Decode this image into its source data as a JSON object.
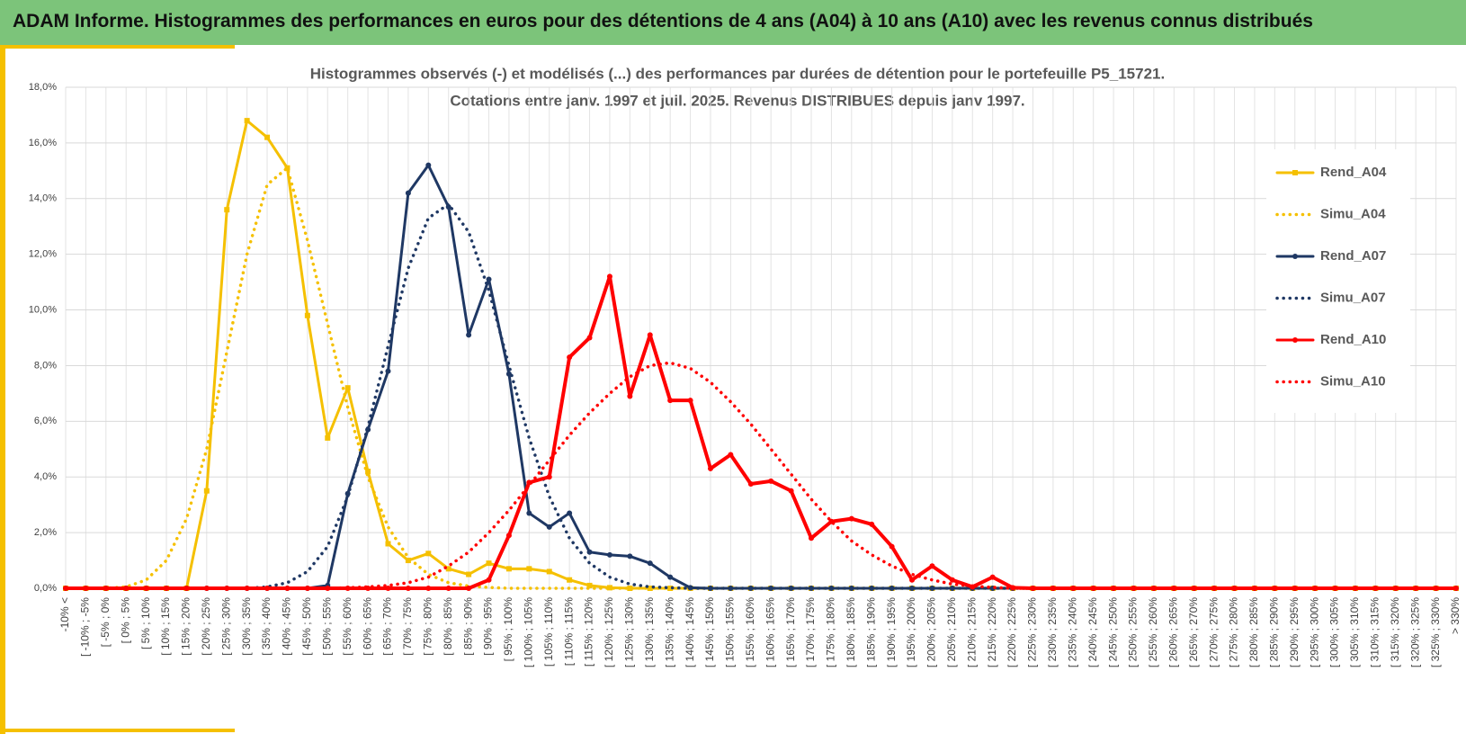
{
  "header": {
    "title": "ADAM Informe. Histogrammes des performances en euros pour des détentions de 4 ans (A04) à 10 ans (A10) avec les revenus connus distribués"
  },
  "chart_data": {
    "type": "line",
    "title": "Histogrammes observés (-) et modélisés (...) des performances par durées de détention pour le portefeuille P5_15721.",
    "subtitle": "Cotations entre janv. 1997 et juil. 2025. Revenus DISTRIBUES depuis janv 1997.",
    "categories": [
      "-10% <",
      "[ -10% ; -5%",
      "[ -5% ; 0%",
      "[ 0% ; 5%",
      "[ 5% ; 10%",
      "[ 10% ; 15%",
      "[ 15% ; 20%",
      "[ 20% ; 25%",
      "[ 25% ; 30%",
      "[ 30% ; 35%",
      "[ 35% ; 40%",
      "[ 40% ; 45%",
      "[ 45% ; 50%",
      "[ 50% ; 55%",
      "[ 55% ; 60%",
      "[ 60% ; 65%",
      "[ 65% ; 70%",
      "[ 70% ; 75%",
      "[ 75% ; 80%",
      "[ 80% ; 85%",
      "[ 85% ; 90%",
      "[ 90% ; 95%",
      "[ 95% ; 100%",
      "[ 100% ; 105%",
      "[ 105% ; 110%",
      "[ 110% ; 115%",
      "[ 115% ; 120%",
      "[ 120% ; 125%",
      "[ 125% ; 130%",
      "[ 130% ; 135%",
      "[ 135% ; 140%",
      "[ 140% ; 145%",
      "[ 145% ; 150%",
      "[ 150% ; 155%",
      "[ 155% ; 160%",
      "[ 160% ; 165%",
      "[ 165% ; 170%",
      "[ 170% ; 175%",
      "[ 175% ; 180%",
      "[ 180% ; 185%",
      "[ 185% ; 190%",
      "[ 190% ; 195%",
      "[ 195% ; 200%",
      "[ 200% ; 205%",
      "[ 205% ; 210%",
      "[ 210% ; 215%",
      "[ 215% ; 220%",
      "[ 220% ; 225%",
      "[ 225% ; 230%",
      "[ 230% ; 235%",
      "[ 235% ; 240%",
      "[ 240% ; 245%",
      "[ 245% ; 250%",
      "[ 250% ; 255%",
      "[ 255% ; 260%",
      "[ 260% ; 265%",
      "[ 265% ; 270%",
      "[ 270% ; 275%",
      "[ 275% ; 280%",
      "[ 280% ; 285%",
      "[ 285% ; 290%",
      "[ 290% ; 295%",
      "[ 295% ; 300%",
      "[ 300% ; 305%",
      "[ 305% ; 310%",
      "[ 310% ; 315%",
      "[ 315% ; 320%",
      "[ 320% ; 325%",
      "[ 325% ; 330%",
      "> 330%"
    ],
    "series": [
      {
        "name": "Rend_A04",
        "color": "#f5c000",
        "line_style": "solid",
        "marker": "square",
        "values": [
          0,
          0,
          0,
          0,
          0,
          0,
          0,
          3.5,
          13.6,
          16.8,
          16.2,
          15.1,
          9.8,
          5.4,
          7.2,
          4.2,
          1.6,
          1.0,
          1.25,
          0.7,
          0.5,
          0.9,
          0.7,
          0.7,
          0.6,
          0.3,
          0.1,
          0.02,
          0,
          0,
          0,
          0,
          0,
          0,
          0,
          0,
          0,
          0,
          0,
          0,
          0,
          0,
          0,
          0,
          0,
          0,
          0,
          0,
          0,
          0,
          0,
          0,
          0,
          0,
          0,
          0,
          0,
          0,
          0,
          0,
          0,
          0,
          0,
          0,
          0,
          0,
          0,
          0,
          0,
          0
        ]
      },
      {
        "name": "Simu_A04",
        "color": "#f5c000",
        "line_style": "dotted",
        "marker": null,
        "values": [
          0,
          0,
          0,
          0.05,
          0.3,
          1.0,
          2.5,
          5.0,
          8.5,
          12.0,
          14.5,
          15.1,
          12.5,
          9.5,
          6.5,
          4.0,
          2.2,
          1.1,
          0.5,
          0.2,
          0.08,
          0.03,
          0,
          0,
          0,
          0,
          0,
          0,
          0,
          0,
          0,
          0,
          0,
          0,
          0,
          0,
          0,
          0,
          0,
          0,
          0,
          0,
          0,
          0,
          0,
          0,
          0,
          0,
          0,
          0,
          0,
          0,
          0,
          0,
          0,
          0,
          0,
          0,
          0,
          0,
          0,
          0,
          0,
          0,
          0,
          0,
          0,
          0,
          0,
          0
        ]
      },
      {
        "name": "Rend_A07",
        "color": "#1f3864",
        "line_style": "solid",
        "marker": "circle",
        "values": [
          0,
          0,
          0,
          0,
          0,
          0,
          0,
          0,
          0,
          0,
          0,
          0,
          0,
          0.1,
          3.4,
          5.7,
          7.8,
          14.2,
          15.2,
          13.7,
          9.1,
          11.1,
          7.7,
          2.7,
          2.2,
          2.7,
          1.3,
          1.2,
          1.15,
          0.9,
          0.4,
          0.02,
          0,
          0,
          0,
          0,
          0,
          0,
          0,
          0,
          0,
          0,
          0,
          0,
          0,
          0,
          0,
          0,
          0,
          0,
          0,
          0,
          0,
          0,
          0,
          0,
          0,
          0,
          0,
          0,
          0,
          0,
          0,
          0,
          0,
          0,
          0,
          0,
          0,
          0
        ]
      },
      {
        "name": "Simu_A07",
        "color": "#1f3864",
        "line_style": "dotted",
        "marker": null,
        "values": [
          0,
          0,
          0,
          0,
          0,
          0,
          0,
          0,
          0,
          0,
          0.05,
          0.2,
          0.6,
          1.5,
          3.3,
          5.8,
          8.7,
          11.5,
          13.3,
          13.8,
          12.8,
          10.7,
          8.0,
          5.4,
          3.3,
          1.8,
          0.9,
          0.4,
          0.15,
          0.05,
          0.02,
          0,
          0,
          0,
          0,
          0,
          0,
          0,
          0,
          0,
          0,
          0,
          0,
          0,
          0,
          0,
          0,
          0,
          0,
          0,
          0,
          0,
          0,
          0,
          0,
          0,
          0,
          0,
          0,
          0,
          0,
          0,
          0,
          0,
          0,
          0,
          0,
          0,
          0,
          0
        ]
      },
      {
        "name": "Rend_A10",
        "color": "#ff0000",
        "line_style": "solid",
        "marker": "circle",
        "values": [
          0,
          0,
          0,
          0,
          0,
          0,
          0,
          0,
          0,
          0,
          0,
          0,
          0,
          0,
          0,
          0,
          0,
          0,
          0,
          0,
          0,
          0.3,
          1.9,
          3.8,
          4.0,
          8.3,
          9.0,
          11.2,
          6.9,
          9.1,
          6.75,
          6.75,
          4.3,
          4.8,
          3.75,
          3.85,
          3.5,
          1.8,
          2.4,
          2.5,
          2.3,
          1.5,
          0.3,
          0.8,
          0.3,
          0.05,
          0.4,
          0.02,
          0,
          0,
          0,
          0,
          0,
          0,
          0,
          0,
          0,
          0,
          0,
          0,
          0,
          0,
          0,
          0,
          0,
          0,
          0,
          0,
          0,
          0
        ]
      },
      {
        "name": "Simu_A10",
        "color": "#ff0000",
        "line_style": "dotted",
        "marker": null,
        "values": [
          0,
          0,
          0,
          0,
          0,
          0,
          0,
          0,
          0,
          0,
          0,
          0,
          0,
          0,
          0.02,
          0.05,
          0.1,
          0.2,
          0.4,
          0.8,
          1.3,
          2.0,
          2.8,
          3.7,
          4.6,
          5.5,
          6.3,
          7.0,
          7.6,
          8.0,
          8.1,
          7.9,
          7.4,
          6.7,
          5.9,
          5.0,
          4.1,
          3.2,
          2.4,
          1.7,
          1.2,
          0.8,
          0.5,
          0.3,
          0.15,
          0.08,
          0.03,
          0,
          0,
          0,
          0,
          0,
          0,
          0,
          0,
          0,
          0,
          0,
          0,
          0,
          0,
          0,
          0,
          0,
          0,
          0,
          0,
          0,
          0,
          0
        ]
      }
    ],
    "ylim": [
      0,
      18
    ],
    "yticks": [
      {
        "value": 0,
        "label": "0,0%"
      },
      {
        "value": 2,
        "label": "2,0%"
      },
      {
        "value": 4,
        "label": "4,0%"
      },
      {
        "value": 6,
        "label": "6,0%"
      },
      {
        "value": 8,
        "label": "8,0%"
      },
      {
        "value": 10,
        "label": "10,0%"
      },
      {
        "value": 12,
        "label": "12,0%"
      },
      {
        "value": 14,
        "label": "14,0%"
      },
      {
        "value": 16,
        "label": "16,0%"
      },
      {
        "value": 18,
        "label": "18,0%"
      }
    ],
    "grid": true,
    "legend": "right"
  }
}
